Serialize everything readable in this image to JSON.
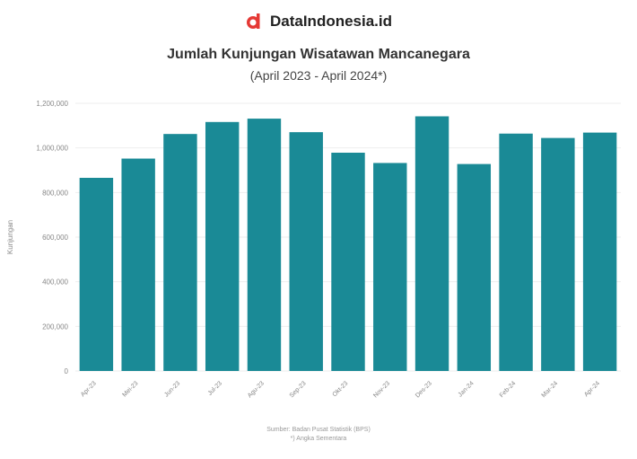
{
  "brand": {
    "name": "DataIndonesia.id",
    "logo_icon": "dataindonesia-logo-icon",
    "logo_color": "#e53935"
  },
  "chart_data": {
    "type": "bar",
    "title": "Jumlah Kunjungan Wisatawan Mancanegara",
    "subtitle": "(April 2023 - April 2024*)",
    "ylabel": "Kunjungan",
    "xlabel": "",
    "categories": [
      "Apr-23",
      "Mei-23",
      "Jun-23",
      "Jul-23",
      "Agu-23",
      "Sep-23",
      "Okt-23",
      "Nov-23",
      "Des-23",
      "Jan-24",
      "Feb-24",
      "Mar-24",
      "Apr-24"
    ],
    "values": [
      865810,
      952140,
      1062410,
      1116170,
      1131210,
      1070550,
      978500,
      932440,
      1141600,
      927750,
      1064110,
      1044520,
      1068670
    ],
    "ylim": [
      0,
      1200000
    ],
    "yticks": [
      0,
      200000,
      400000,
      600000,
      800000,
      1000000,
      1200000
    ],
    "ytick_labels": [
      "0",
      "200,000",
      "400,000",
      "600,000",
      "800,000",
      "1,000,000",
      "1,200,000"
    ],
    "bar_color": "#1a8a96",
    "grid": true
  },
  "source": {
    "line1": "Sumber: Badan Pusat Statistik (BPS)",
    "line2": "*) Angka Sementara"
  }
}
